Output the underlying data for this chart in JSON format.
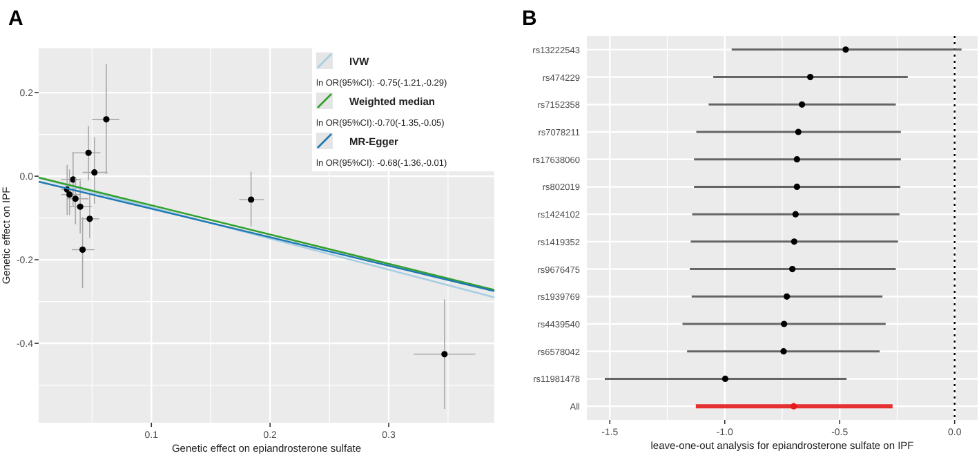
{
  "chart_data": [
    {
      "type": "scatter",
      "title": "A",
      "xlabel": "Genetic effect on epiandrosterone sulfate",
      "ylabel": "Genetic effect on IPF",
      "xlim": [
        0.005,
        0.389
      ],
      "ylim": [
        -0.59,
        0.306
      ],
      "xticks": [
        {
          "value": 0.05,
          "label": null
        },
        0.1,
        {
          "value": 0.15,
          "label": null
        },
        0.2,
        {
          "value": 0.25,
          "label": null
        },
        0.3,
        {
          "value": 0.35,
          "label": null
        }
      ],
      "yticks": [
        {
          "value": -0.5,
          "label": null
        },
        -0.4,
        {
          "value": -0.3,
          "label": null
        },
        -0.2,
        {
          "value": -0.1,
          "label": null
        },
        {
          "value": 0,
          "label": "0.0"
        },
        {
          "value": 0.1,
          "label": null
        },
        0.2
      ],
      "grid": true,
      "legend": "top right",
      "series": [
        {
          "type": "scatter",
          "marker": "circle",
          "color": "#000000",
          "x": [
            0.062,
            0.047,
            0.052,
            0.034,
            0.029,
            0.031,
            0.036,
            0.04,
            0.048,
            0.042,
            0.184,
            0.347
          ],
          "values": [
            0.136,
            0.056,
            0.009,
            -0.008,
            -0.032,
            -0.044,
            -0.054,
            -0.073,
            -0.102,
            -0.176,
            -0.056,
            -0.426
          ],
          "errors": [
            [
              0.005,
              0.268
            ],
            [
              -0.01,
              0.12
            ],
            [
              -0.066,
              0.093
            ],
            [
              -0.071,
              0.055
            ],
            [
              -0.093,
              0.027
            ],
            [
              -0.093,
              0.016
            ],
            [
              -0.115,
              -0.005
            ],
            [
              -0.137,
              -0.011
            ],
            [
              -0.148,
              -0.044
            ],
            [
              -0.268,
              -0.098
            ],
            [
              -0.12,
              0.011
            ],
            [
              -0.557,
              -0.295
            ]
          ],
          "xerrors": [
            [
              0.05,
              0.073
            ],
            [
              0.033,
              0.057
            ],
            [
              0.042,
              0.063
            ],
            [
              0.024,
              0.041
            ],
            [
              0.024,
              0.034
            ],
            [
              0.024,
              0.04
            ],
            [
              0.029,
              0.047
            ],
            [
              0.031,
              0.05
            ],
            [
              0.041,
              0.056
            ],
            [
              0.033,
              0.052
            ],
            [
              0.174,
              0.195
            ],
            [
              0.321,
              0.373
            ]
          ]
        },
        {
          "type": "line",
          "marker": "none",
          "name": "IVW",
          "color": "#a6cee3",
          "x": [
            0.005,
            0.389
          ],
          "values": [
            -0.004,
            -0.29
          ]
        },
        {
          "type": "line",
          "marker": "none",
          "name": "Weighted median",
          "color": "#33a02c",
          "x": [
            0.005,
            0.389
          ],
          "values": [
            -0.003,
            -0.272
          ]
        },
        {
          "type": "line",
          "marker": "none",
          "name": "MR-Egger",
          "color": "#1f78b4",
          "x": [
            0.005,
            0.389
          ],
          "values": [
            -0.013,
            -0.275
          ]
        }
      ],
      "annotations": [
        "ln OR(95%CI): -0.75(-1.21,-0.29)",
        "ln OR(95%CI):-0.70(-1.35,-0.05)",
        "ln OR(95%CI): -0.68(-1.36,-0.01)"
      ]
    },
    {
      "type": "scatter",
      "title": "B",
      "orientation": "horizontal",
      "xlabel": "leave-one-out analysis for epiandrosterone sulfate on IPF",
      "xlim": [
        -1.6,
        0.1
      ],
      "xticks": [
        -1.5,
        {
          "value": -1.25,
          "label": null
        },
        {
          "value": -1,
          "label": "-1.0"
        },
        {
          "value": -0.75,
          "label": null
        },
        -0.5,
        {
          "value": -0.25,
          "label": null
        },
        {
          "value": 0,
          "label": "0.0"
        }
      ],
      "grid": true,
      "marker": "circle",
      "categories": [
        "rs13222543",
        "rs474229",
        "rs7152358",
        "rs7078211",
        "rs17638060",
        "rs802019",
        "rs1424102",
        "rs1419352",
        "rs9676475",
        "rs1939769",
        "rs4439540",
        "rs6578042",
        "rs11981478",
        "All"
      ],
      "values": [
        -0.474,
        -0.628,
        -0.664,
        -0.68,
        -0.686,
        -0.686,
        -0.692,
        -0.698,
        -0.706,
        -0.73,
        -0.742,
        -0.744,
        -0.998,
        -0.7
      ],
      "errors": [
        [
          -0.97,
          0.03
        ],
        [
          -1.05,
          -0.204
        ],
        [
          -1.07,
          -0.256
        ],
        [
          -1.124,
          -0.234
        ],
        [
          -1.134,
          -0.234
        ],
        [
          -1.134,
          -0.236
        ],
        [
          -1.142,
          -0.24
        ],
        [
          -1.148,
          -0.246
        ],
        [
          -1.152,
          -0.256
        ],
        [
          -1.144,
          -0.314
        ],
        [
          -1.184,
          -0.3
        ],
        [
          -1.164,
          -0.326
        ],
        [
          -1.522,
          -0.47
        ],
        [
          -1.126,
          -0.27
        ]
      ],
      "colors": [
        "#000000",
        "#000000",
        "#000000",
        "#000000",
        "#000000",
        "#000000",
        "#000000",
        "#000000",
        "#000000",
        "#000000",
        "#000000",
        "#000000",
        "#000000",
        "#e41a1c"
      ],
      "ref_lines": [
        {
          "axis": "x",
          "value": 0,
          "line_style": "dotted",
          "color": "#000000"
        }
      ]
    }
  ]
}
